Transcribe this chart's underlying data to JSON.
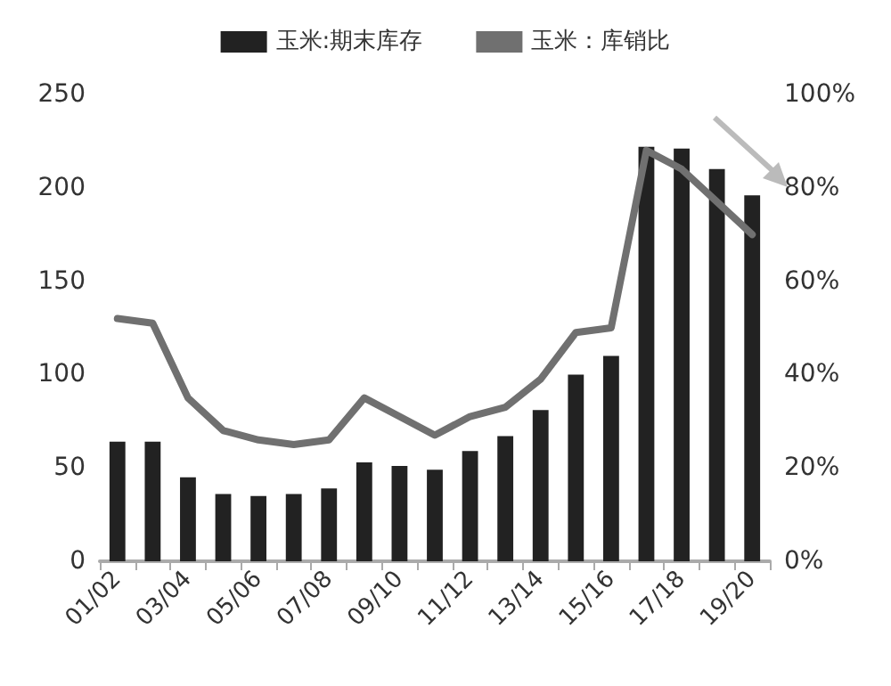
{
  "chart_data": {
    "type": "bar",
    "categories": [
      "01/02",
      null,
      "03/04",
      null,
      "05/06",
      null,
      "07/08",
      null,
      "09/10",
      null,
      "11/12",
      null,
      "13/14",
      null,
      "15/16",
      null,
      "17/18",
      null,
      "19/20"
    ],
    "series": [
      {
        "name": "玉米:期末库存",
        "color": "#222222",
        "values": [
          64,
          64,
          45,
          36,
          35,
          36,
          39,
          53,
          51,
          49,
          59,
          67,
          81,
          100,
          110,
          222,
          221,
          210,
          196
        ]
      },
      {
        "name": "玉米：库销比",
        "type": "line",
        "axis": "y2",
        "color": "#707070",
        "values": [
          52,
          51,
          35,
          28,
          26,
          25,
          26,
          35,
          31,
          27,
          31,
          33,
          39,
          49,
          50,
          88,
          84,
          77,
          70
        ]
      }
    ],
    "ylim": [
      0,
      250
    ],
    "yticks": [
      0,
      50,
      100,
      150,
      200,
      250
    ],
    "y2lim": [
      0,
      100
    ],
    "y2ticks": [
      {
        "value": 0,
        "label": "0%"
      },
      {
        "value": 20,
        "label": "20%"
      },
      {
        "value": 40,
        "label": "40%"
      },
      {
        "value": 60,
        "label": "60%"
      },
      {
        "value": 80,
        "label": "80%"
      },
      {
        "value": 100,
        "label": "100%"
      }
    ],
    "legend": "top",
    "grid": false,
    "marker": "none",
    "line_style": "solid"
  }
}
